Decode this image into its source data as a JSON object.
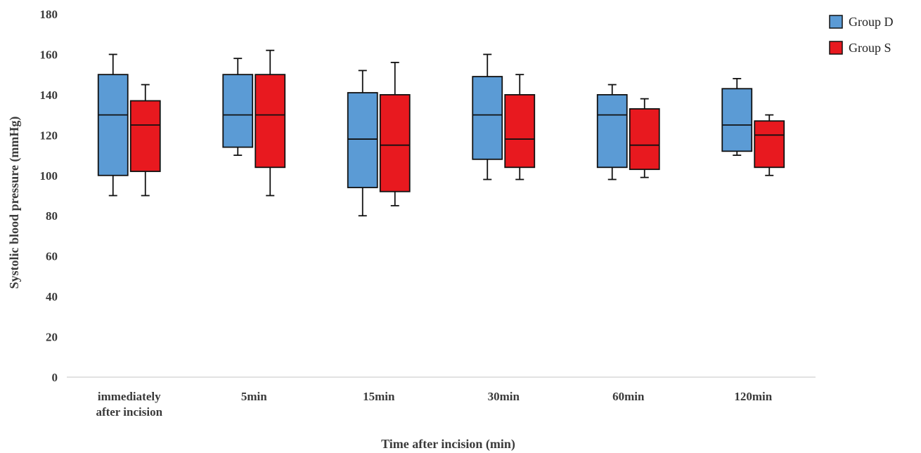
{
  "chart_data": {
    "type": "box",
    "xlabel": "Time after incision (min)",
    "ylabel": "Systolic  blood pressure (mmHg)",
    "ylim": [
      0,
      180
    ],
    "yticks": [
      0,
      20,
      40,
      60,
      80,
      100,
      120,
      140,
      160,
      180
    ],
    "grid": false,
    "legend_position": "top-right",
    "categories": [
      [
        "immediately",
        "after incision"
      ],
      [
        "5min"
      ],
      [
        "15min"
      ],
      [
        "30min"
      ],
      [
        "60min"
      ],
      [
        "120min"
      ]
    ],
    "series": [
      {
        "name": "Group D",
        "color": "#5b9bd5",
        "boxes": [
          {
            "min": 90,
            "q1": 100,
            "median": 130,
            "q3": 150,
            "max": 160
          },
          {
            "min": 110,
            "q1": 114,
            "median": 130,
            "q3": 150,
            "max": 158
          },
          {
            "min": 80,
            "q1": 94,
            "median": 118,
            "q3": 141,
            "max": 152
          },
          {
            "min": 98,
            "q1": 108,
            "median": 130,
            "q3": 149,
            "max": 160
          },
          {
            "min": 98,
            "q1": 104,
            "median": 130,
            "q3": 140,
            "max": 145
          },
          {
            "min": 110,
            "q1": 112,
            "median": 125,
            "q3": 143,
            "max": 148
          }
        ]
      },
      {
        "name": "Group S",
        "color": "#e8191f",
        "boxes": [
          {
            "min": 90,
            "q1": 102,
            "median": 125,
            "q3": 137,
            "max": 145
          },
          {
            "min": 90,
            "q1": 104,
            "median": 130,
            "q3": 150,
            "max": 162
          },
          {
            "min": 85,
            "q1": 92,
            "median": 115,
            "q3": 140,
            "max": 156
          },
          {
            "min": 98,
            "q1": 104,
            "median": 118,
            "q3": 140,
            "max": 150
          },
          {
            "min": 99,
            "q1": 103,
            "median": 115,
            "q3": 133,
            "max": 138
          },
          {
            "min": 100,
            "q1": 104,
            "median": 120,
            "q3": 127,
            "max": 130
          }
        ]
      }
    ]
  }
}
